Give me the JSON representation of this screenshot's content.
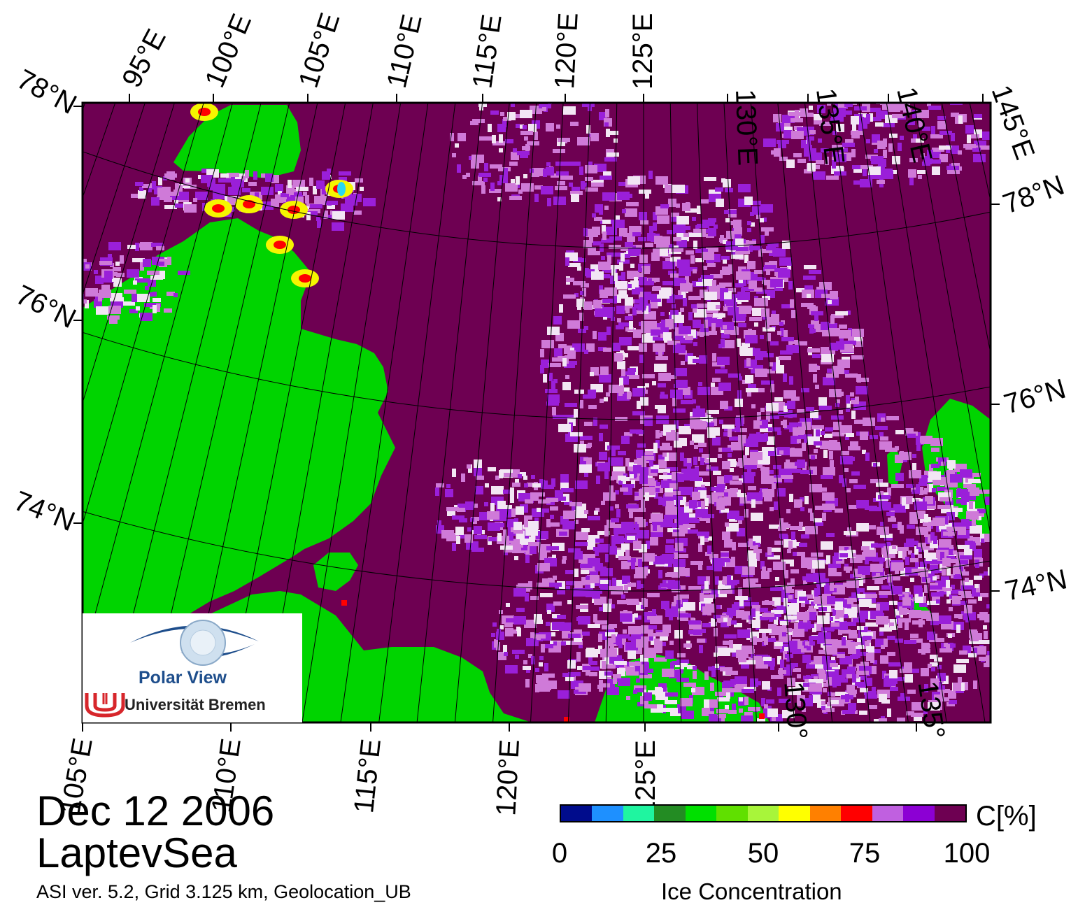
{
  "map": {
    "colors": {
      "water": "#6e0052",
      "land": "#00d400",
      "coast_gray": "#808080",
      "ice_light": "#cf7ad8",
      "ice_purple": "#9a1fd9",
      "ice_white": "#f2e6f4",
      "ice_yellow": "#f5f500",
      "ice_red": "#ff0000",
      "ice_cyan": "#29d6f0"
    },
    "top_lon_labels": [
      "95°E",
      "100°E",
      "105°E",
      "110°E",
      "115°E",
      "120°E",
      "125°E",
      "130°E",
      "135°E",
      "140°E",
      "145°E"
    ],
    "bottom_lon_labels": [
      "105°E",
      "110°E",
      "115°E",
      "120°E",
      "125°E",
      "130°",
      "135°"
    ],
    "left_lat_labels": [
      "78°N",
      "76°N",
      "74°N"
    ],
    "right_lat_labels": [
      "78°N",
      "76°N",
      "74°N"
    ]
  },
  "logo": {
    "title": "Polar View",
    "subtitle": "Universität Bremen"
  },
  "date": "Dec 12 2006",
  "region": "LaptevSea",
  "footer": "ASI ver. 5.2,  Grid 3.125 km, Geolocation_UB",
  "colorbar": {
    "unit": "C[%]",
    "title": "Ice Concentration",
    "ticks": [
      "0",
      "25",
      "50",
      "75",
      "100"
    ],
    "colors": [
      "#000c8c",
      "#1e90ff",
      "#1ff5a0",
      "#238c23",
      "#00e000",
      "#60e000",
      "#a8f53a",
      "#ffff00",
      "#ff8000",
      "#ff0000",
      "#c060e0",
      "#8c00d4",
      "#6e0052"
    ]
  }
}
